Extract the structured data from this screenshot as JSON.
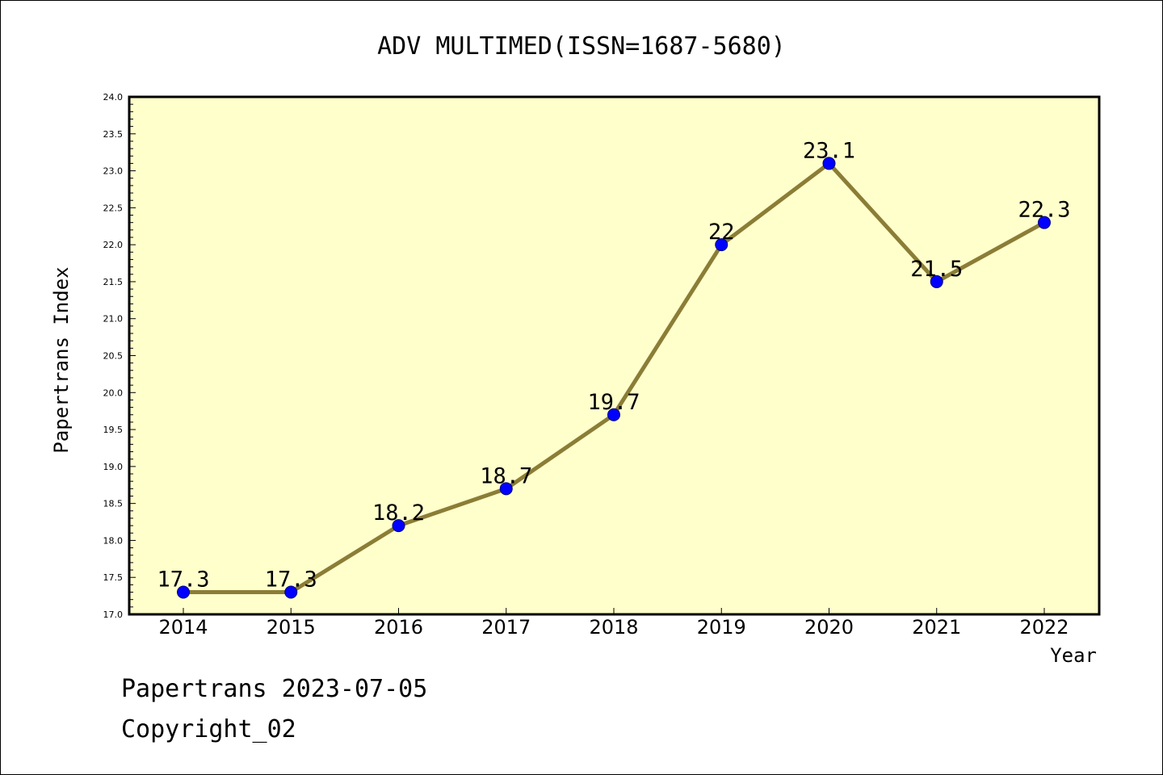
{
  "chart_data": {
    "type": "line",
    "title": "ADV MULTIMED(ISSN=1687-5680)",
    "xlabel": "Year",
    "ylabel": "Papertrans Index",
    "x": [
      "2014",
      "2015",
      "2016",
      "2017",
      "2018",
      "2019",
      "2020",
      "2021",
      "2022"
    ],
    "series": [
      {
        "values": [
          17.3,
          17.3,
          18.2,
          18.7,
          19.7,
          22.0,
          23.1,
          21.5,
          22.3
        ]
      }
    ],
    "data_labels": [
      "17.3",
      "17.3",
      "18.2",
      "18.7",
      "19.7",
      "22",
      "23.1",
      "21.5",
      "22.3"
    ],
    "ylim": [
      17.0,
      24.0
    ],
    "yticks": [
      "17.0",
      "17.5",
      "18.0",
      "18.5",
      "19.0",
      "19.5",
      "20.0",
      "20.5",
      "21.0",
      "21.5",
      "22.0",
      "22.5",
      "23.0",
      "23.5",
      "24.0"
    ],
    "grid": false,
    "colors": {
      "plot_background": "#ffffcc",
      "line": "#8b7d36",
      "marker": "#0000ff"
    }
  },
  "footer": {
    "line1": "Papertrans 2023-07-05",
    "line2": "Copyright_02"
  }
}
